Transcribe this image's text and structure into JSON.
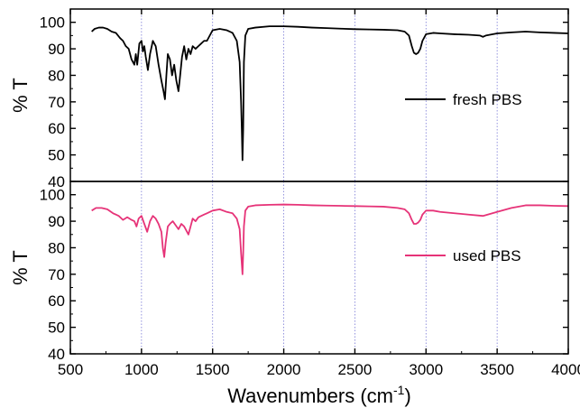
{
  "chart_data": [
    {
      "type": "line",
      "panel": "top",
      "xlabel": "",
      "ylabel": "% T",
      "xlim": [
        500,
        4000
      ],
      "ylim": [
        40,
        105
      ],
      "yticks": [
        40,
        50,
        60,
        70,
        80,
        90,
        100
      ],
      "legend": "right",
      "grid_x": true,
      "series": [
        {
          "name": "fresh PBS",
          "color": "#000000",
          "x": [
            650,
            670,
            700,
            730,
            760,
            790,
            820,
            850,
            870,
            890,
            910,
            930,
            950,
            960,
            970,
            985,
            1000,
            1010,
            1020,
            1030,
            1045,
            1060,
            1080,
            1100,
            1120,
            1140,
            1155,
            1165,
            1175,
            1185,
            1200,
            1215,
            1230,
            1245,
            1260,
            1270,
            1285,
            1300,
            1315,
            1330,
            1345,
            1360,
            1380,
            1400,
            1420,
            1440,
            1460,
            1480,
            1500,
            1550,
            1600,
            1640,
            1670,
            1690,
            1700,
            1705,
            1710,
            1715,
            1720,
            1730,
            1750,
            1800,
            1900,
            2000,
            2100,
            2200,
            2300,
            2400,
            2500,
            2600,
            2700,
            2800,
            2850,
            2880,
            2900,
            2915,
            2930,
            2945,
            2960,
            2975,
            3000,
            3050,
            3100,
            3200,
            3300,
            3380,
            3400,
            3420,
            3500,
            3600,
            3700,
            3800,
            3900,
            4000
          ],
          "y": [
            96.5,
            97.5,
            98,
            98,
            97.5,
            96.5,
            96,
            94,
            93,
            91,
            90,
            86,
            84,
            88,
            84,
            92,
            93,
            89,
            91,
            87,
            82,
            88,
            93,
            91,
            84,
            78,
            74,
            71,
            80,
            88,
            86,
            80,
            84,
            78,
            74,
            79,
            87,
            91,
            86,
            90,
            88,
            91,
            90,
            91,
            92,
            93,
            93,
            95,
            97,
            97.5,
            97,
            96,
            93,
            85,
            70,
            60,
            48,
            60,
            85,
            95,
            97.5,
            98,
            98.5,
            98.5,
            98.3,
            98,
            97.8,
            97.6,
            97.4,
            97.3,
            97.2,
            97,
            96.5,
            95,
            91,
            88.5,
            88,
            88.5,
            90,
            93,
            95.5,
            96,
            95.8,
            95.5,
            95.3,
            95,
            94.5,
            95,
            95.8,
            96.2,
            96.5,
            96.2,
            96,
            95.8
          ]
        }
      ]
    },
    {
      "type": "line",
      "panel": "bottom",
      "xlabel": "Wavenumbers (cm⁻¹)",
      "ylabel": "% T",
      "xlim": [
        500,
        4000
      ],
      "ylim": [
        40,
        105
      ],
      "xticks": [
        500,
        1000,
        1500,
        2000,
        2500,
        3000,
        3500,
        4000
      ],
      "yticks": [
        40,
        50,
        60,
        70,
        80,
        90,
        100
      ],
      "legend": "right",
      "grid_x": true,
      "series": [
        {
          "name": "used PBS",
          "color": "#e63378",
          "x": [
            650,
            680,
            720,
            760,
            800,
            840,
            870,
            900,
            930,
            950,
            965,
            980,
            1000,
            1020,
            1040,
            1060,
            1080,
            1100,
            1120,
            1140,
            1150,
            1160,
            1170,
            1185,
            1200,
            1220,
            1240,
            1260,
            1280,
            1300,
            1320,
            1330,
            1345,
            1360,
            1380,
            1400,
            1420,
            1440,
            1460,
            1480,
            1500,
            1550,
            1600,
            1640,
            1670,
            1690,
            1700,
            1705,
            1710,
            1715,
            1720,
            1730,
            1750,
            1800,
            1900,
            2000,
            2100,
            2200,
            2300,
            2400,
            2500,
            2600,
            2700,
            2800,
            2850,
            2880,
            2900,
            2915,
            2930,
            2945,
            2960,
            2975,
            3000,
            3050,
            3100,
            3200,
            3300,
            3400,
            3500,
            3600,
            3700,
            3800,
            3900,
            4000
          ],
          "y": [
            94,
            95,
            95,
            94.5,
            93,
            92,
            90.5,
            91.5,
            90.5,
            90,
            88,
            91,
            92,
            89,
            86,
            90,
            92,
            91,
            89,
            86,
            80,
            76.5,
            82,
            88,
            89,
            90,
            88.5,
            87,
            89,
            88,
            86,
            85,
            88,
            91,
            90,
            91.5,
            92,
            92.5,
            93,
            93.5,
            94,
            94.5,
            93.5,
            93,
            91,
            87,
            78,
            74,
            70,
            78,
            88,
            94,
            95.5,
            96,
            96.2,
            96.3,
            96.2,
            96,
            95.9,
            95.8,
            95.7,
            95.6,
            95.5,
            95,
            94.5,
            93,
            90.5,
            89,
            89,
            89.5,
            90.5,
            92.5,
            94,
            94,
            93.5,
            93,
            92.5,
            92,
            93.5,
            95,
            96,
            96,
            95.8,
            95.7
          ]
        }
      ]
    }
  ]
}
